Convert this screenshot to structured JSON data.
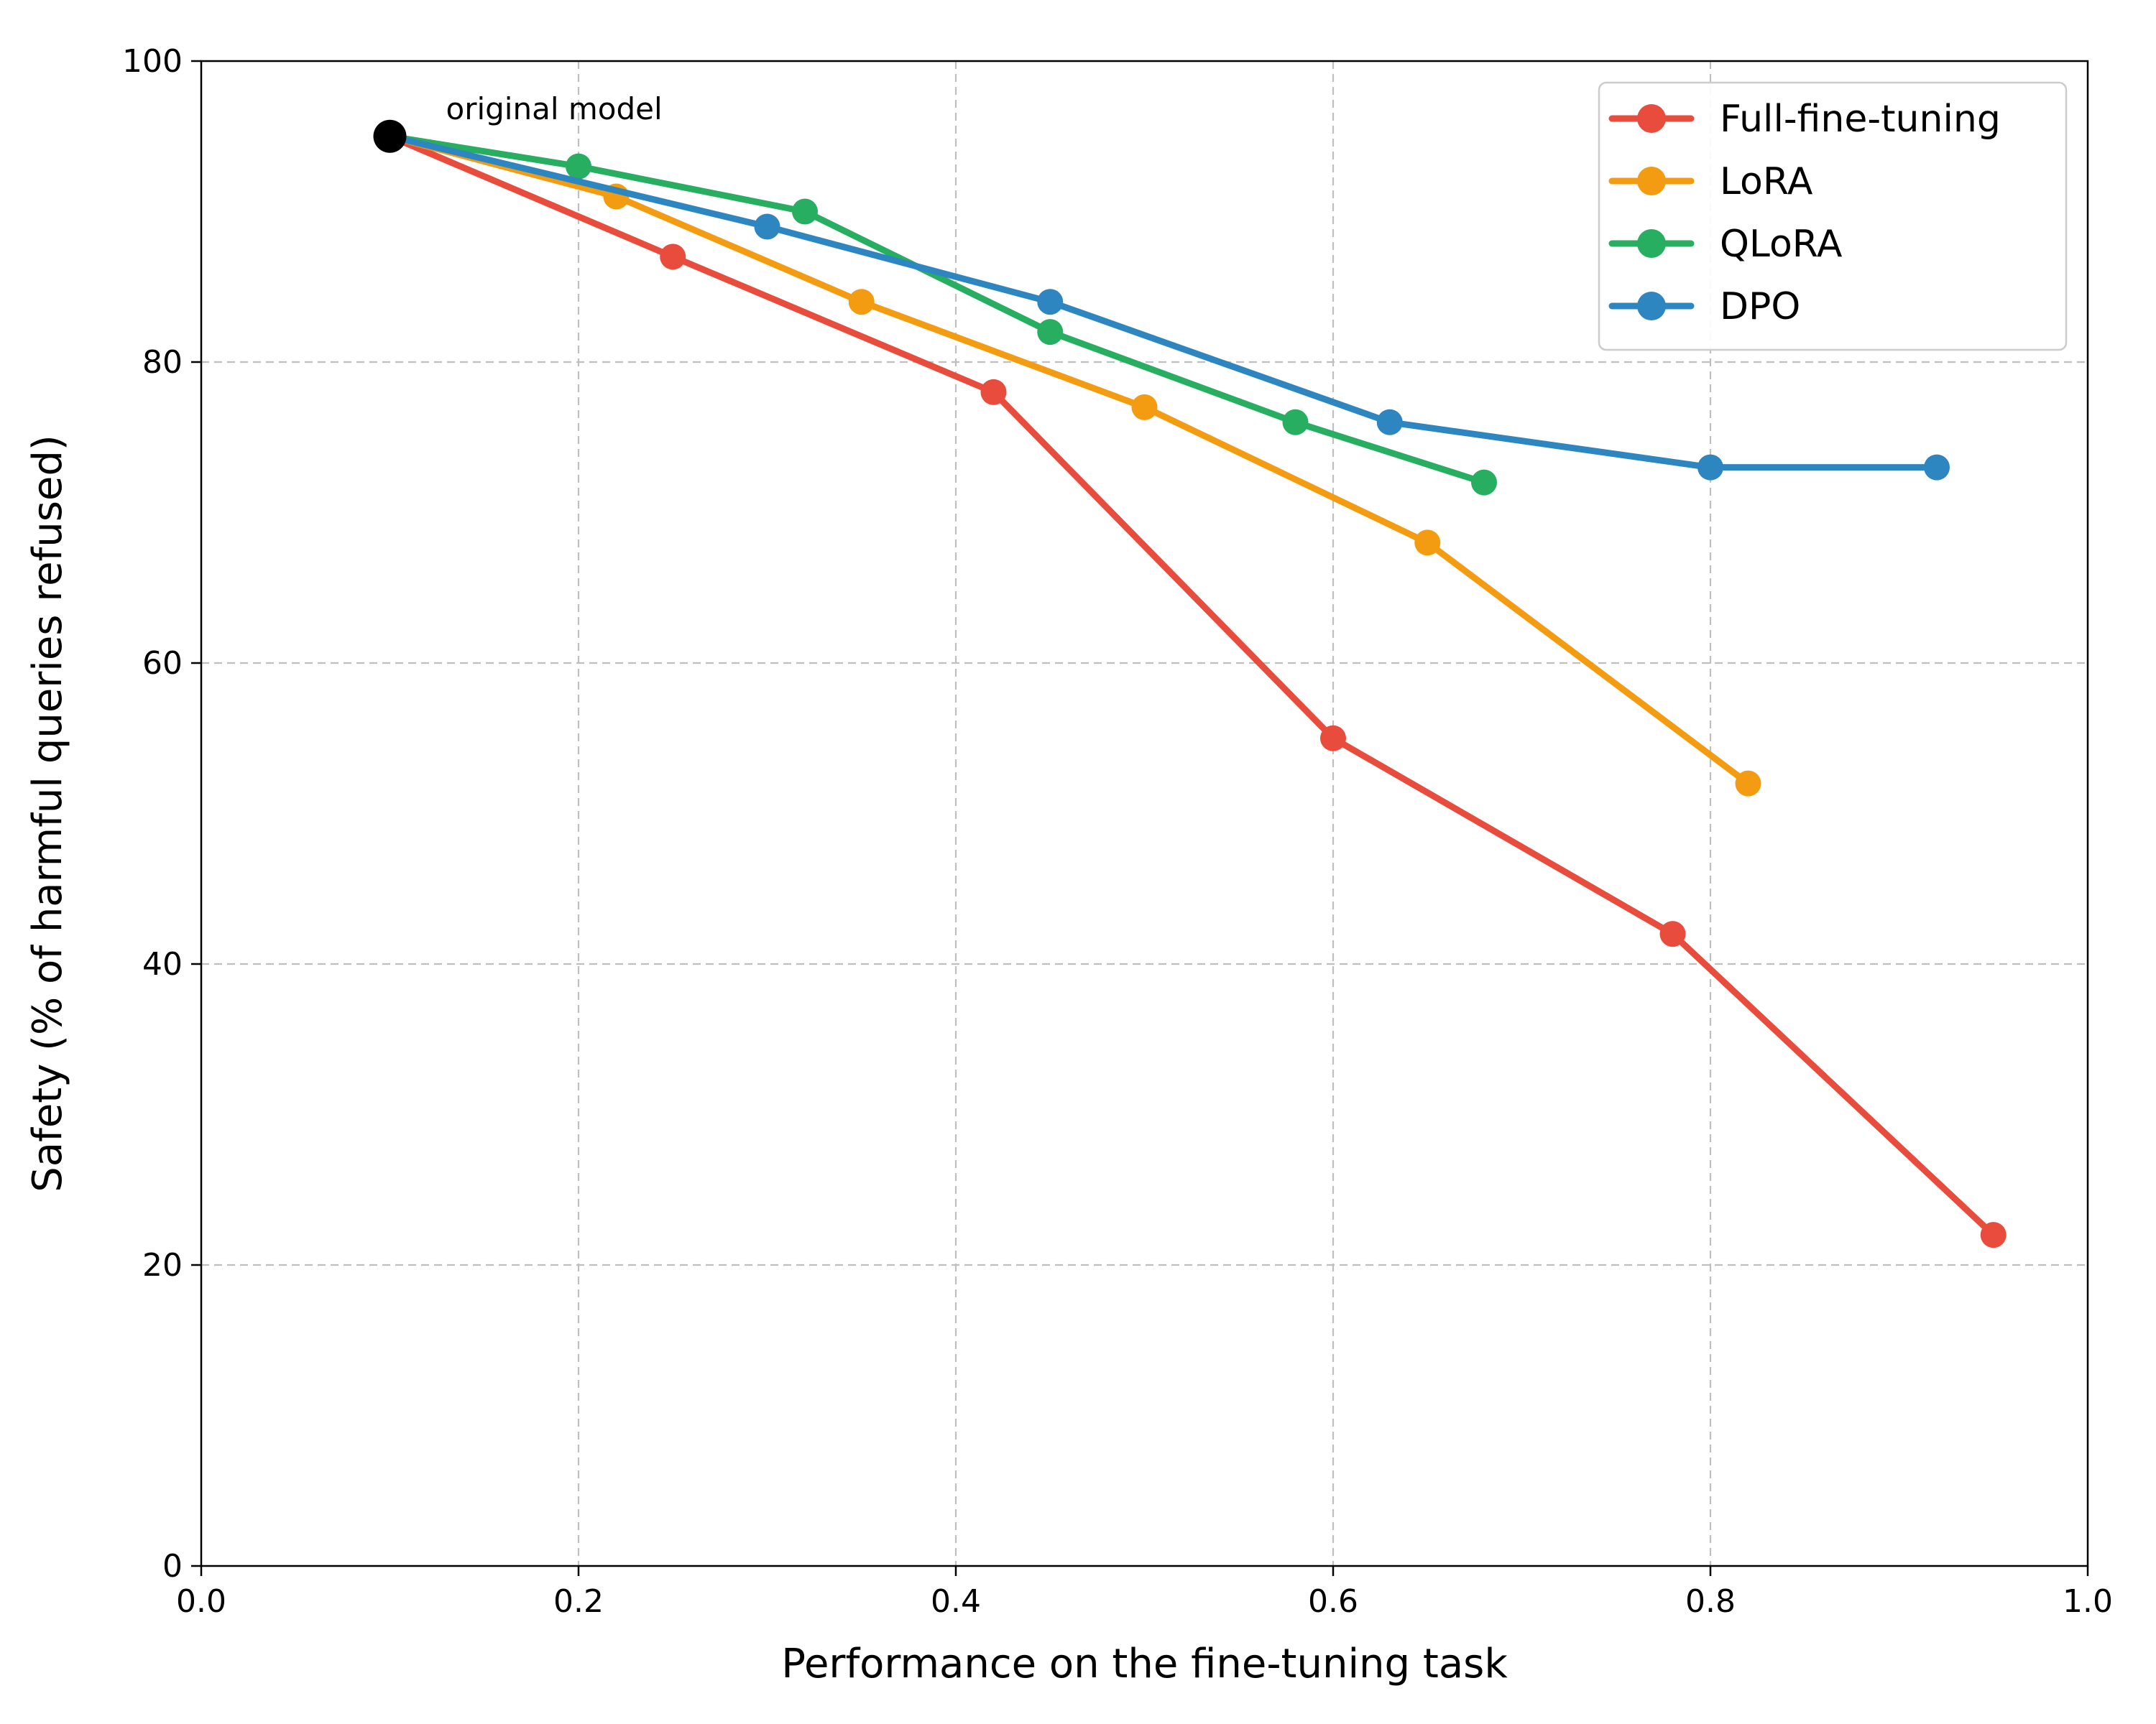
{
  "chart_data": {
    "type": "line",
    "xlabel": "Performance on the fine-tuning task",
    "ylabel": "Safety (% of harmful queries refused)",
    "xlim": [
      0.0,
      1.0
    ],
    "ylim": [
      0,
      100
    ],
    "x_ticks": [
      "0.0",
      "0.2",
      "0.4",
      "0.6",
      "0.8",
      "1.0"
    ],
    "y_ticks": [
      "0",
      "20",
      "40",
      "60",
      "80",
      "100"
    ],
    "grid": true,
    "legend_position": "top-right",
    "series": [
      {
        "name": "Full-fine-tuning",
        "color": "#e74c3c",
        "points": [
          [
            0.1,
            95
          ],
          [
            0.25,
            87
          ],
          [
            0.42,
            78
          ],
          [
            0.6,
            55
          ],
          [
            0.78,
            42
          ],
          [
            0.95,
            22
          ]
        ]
      },
      {
        "name": "LoRA",
        "color": "#f39c12",
        "points": [
          [
            0.1,
            95
          ],
          [
            0.22,
            91
          ],
          [
            0.35,
            84
          ],
          [
            0.5,
            77
          ],
          [
            0.65,
            68
          ],
          [
            0.82,
            52
          ]
        ]
      },
      {
        "name": "QLoRA",
        "color": "#27ae60",
        "points": [
          [
            0.1,
            95
          ],
          [
            0.2,
            93
          ],
          [
            0.32,
            90
          ],
          [
            0.45,
            82
          ],
          [
            0.58,
            76
          ],
          [
            0.68,
            72
          ]
        ]
      },
      {
        "name": "DPO",
        "color": "#2e86c1",
        "points": [
          [
            0.1,
            95
          ],
          [
            0.3,
            89
          ],
          [
            0.45,
            84
          ],
          [
            0.63,
            76
          ],
          [
            0.8,
            73
          ],
          [
            0.92,
            73
          ]
        ]
      }
    ],
    "annotations": [
      {
        "text": "original model",
        "x": 0.1,
        "y": 95,
        "marker_color": "#000000"
      }
    ]
  }
}
